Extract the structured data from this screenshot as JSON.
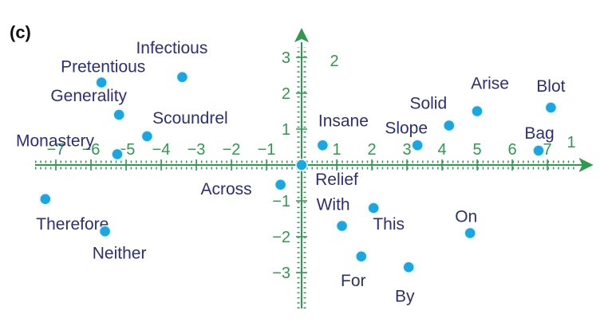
{
  "panel_label": "(c)",
  "chart_data": {
    "type": "scatter",
    "title": "",
    "xlabel": "",
    "ylabel": "",
    "xlim": [
      -7.5,
      7.9
    ],
    "ylim": [
      -4.0,
      3.6
    ],
    "x_axis_end_label": "1",
    "y_axis_end_label": "2",
    "x_ticks": [
      -7,
      -6,
      -5,
      -4,
      -3,
      -2,
      -1,
      1,
      2,
      3,
      4,
      5,
      6,
      7
    ],
    "x_tick_labels": [
      "−7",
      "−6",
      "−5",
      "−4",
      "−3",
      "−2",
      "−1",
      "1",
      "2",
      "3",
      "4",
      "5",
      "6",
      "7"
    ],
    "y_ticks": [
      3,
      2,
      1,
      -1,
      -2,
      -3
    ],
    "y_tick_labels": [
      "3",
      "2",
      "1",
      "−1",
      "−2",
      "−3"
    ],
    "colors": {
      "axis": "#2e9a4e",
      "point": "#1aa6e0",
      "point_edge": "#e6f6fd",
      "label": "#2b2f7a"
    },
    "points": [
      {
        "label": "Pretentious",
        "x": -5.7,
        "y": 2.3
      },
      {
        "label": "Infectious",
        "x": -3.4,
        "y": 2.45
      },
      {
        "label": "Generality",
        "x": -5.2,
        "y": 1.4
      },
      {
        "label": "Scoundrel",
        "x": -4.4,
        "y": 0.8
      },
      {
        "label": "Monastery",
        "x": -5.25,
        "y": 0.3
      },
      {
        "label": "Therefore",
        "x": -7.3,
        "y": -0.95
      },
      {
        "label": "Neither",
        "x": -5.6,
        "y": -1.85
      },
      {
        "label": "Across",
        "x": -0.6,
        "y": -0.55
      },
      {
        "label": "Relief",
        "x": 0.0,
        "y": 0.0
      },
      {
        "label": "Insane",
        "x": 0.6,
        "y": 0.55
      },
      {
        "label": "With",
        "x": 1.15,
        "y": -1.7
      },
      {
        "label": "This",
        "x": 2.05,
        "y": -1.2
      },
      {
        "label": "For",
        "x": 1.7,
        "y": -2.55
      },
      {
        "label": "By",
        "x": 3.05,
        "y": -2.85
      },
      {
        "label": "Slope",
        "x": 3.3,
        "y": 0.55
      },
      {
        "label": "Solid",
        "x": 4.2,
        "y": 1.1
      },
      {
        "label": "Arise",
        "x": 5.0,
        "y": 1.5
      },
      {
        "label": "On",
        "x": 4.8,
        "y": -1.9
      },
      {
        "label": "Bag",
        "x": 6.75,
        "y": 0.4
      },
      {
        "label": "Blot",
        "x": 7.1,
        "y": 1.6
      }
    ]
  }
}
